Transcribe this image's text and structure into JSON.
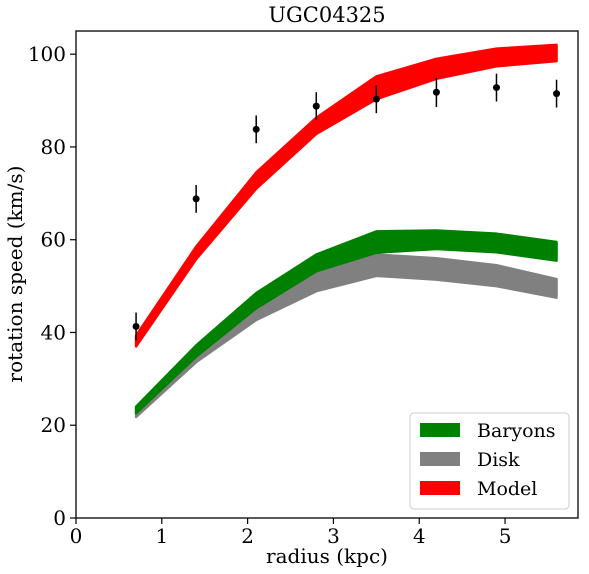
{
  "chart_data": {
    "type": "line",
    "title": "UGC04325",
    "xlabel": "radius (kpc)",
    "ylabel": "rotation speed (km/s)",
    "xlim": [
      0,
      5.85
    ],
    "ylim": [
      0,
      105
    ],
    "xticks": [
      0,
      1,
      2,
      3,
      4,
      5
    ],
    "yticks": [
      0,
      20,
      40,
      60,
      80,
      100
    ],
    "grid": false,
    "legend_position": "bottom-right",
    "x": [
      0.7,
      1.4,
      2.1,
      2.8,
      3.5,
      4.2,
      4.9,
      5.6
    ],
    "bands": [
      {
        "name": "Disk",
        "color": "#808080",
        "lower": [
          21.8,
          33.6,
          42.7,
          48.9,
          52.2,
          51.4,
          50.0,
          47.5
        ],
        "upper": [
          23.3,
          36.0,
          45.7,
          52.8,
          56.8,
          56.0,
          54.5,
          51.5
        ]
      },
      {
        "name": "Baryons",
        "color": "#008000",
        "lower": [
          22.6,
          34.8,
          45.2,
          53.2,
          57.2,
          58.0,
          57.3,
          55.5
        ],
        "upper": [
          24.0,
          37.2,
          48.5,
          56.8,
          61.8,
          62.0,
          61.3,
          59.5
        ]
      },
      {
        "name": "Model",
        "color": "#ff0000",
        "lower": [
          37.0,
          55.8,
          71.0,
          82.8,
          90.3,
          94.7,
          97.4,
          98.5
        ],
        "upper": [
          39.3,
          58.5,
          74.5,
          86.3,
          95.2,
          99.0,
          101.2,
          102.0
        ]
      }
    ],
    "observed": {
      "color": "#000000",
      "x": [
        0.7,
        1.4,
        2.1,
        2.8,
        3.5,
        4.2,
        4.9,
        5.6
      ],
      "y": [
        41.3,
        68.8,
        83.8,
        88.8,
        90.3,
        91.8,
        92.8,
        91.5
      ],
      "err": [
        3.0,
        3.0,
        3.0,
        3.0,
        3.0,
        3.2,
        3.0,
        3.0
      ]
    },
    "legend": [
      {
        "label": "Baryons",
        "color": "#008000"
      },
      {
        "label": "Disk",
        "color": "#808080"
      },
      {
        "label": "Model",
        "color": "#ff0000"
      }
    ]
  }
}
